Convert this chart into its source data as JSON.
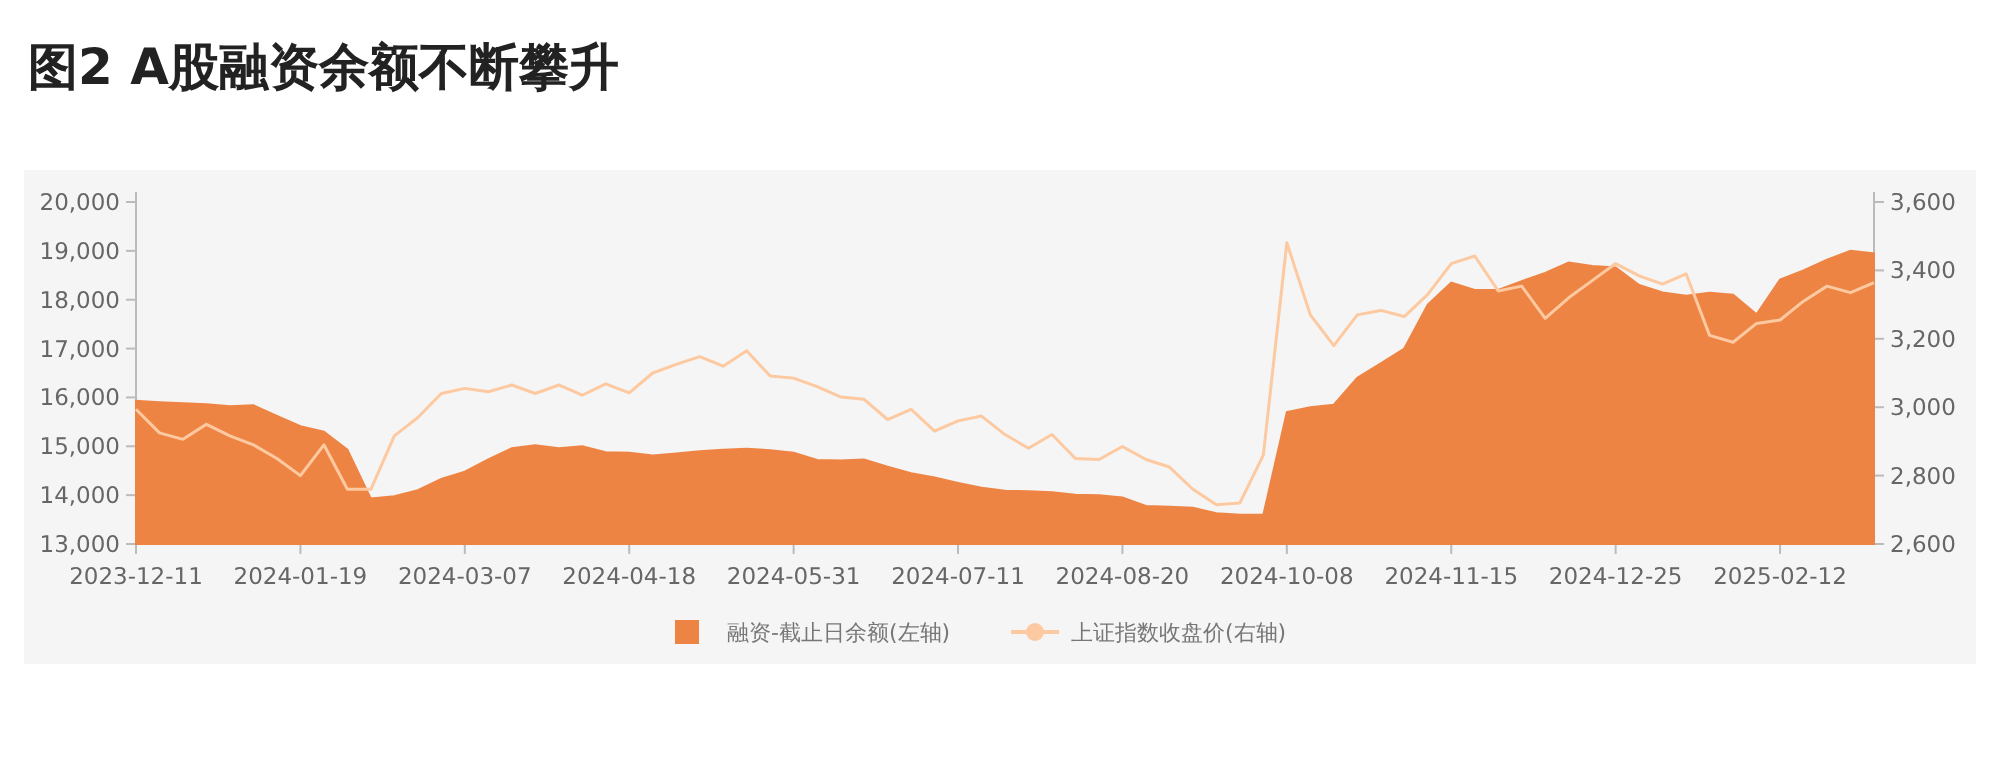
{
  "chart_data": {
    "type": "area",
    "title": "图2  A股融资余额不断攀升",
    "categories": [
      "2023-12-11",
      null,
      null,
      null,
      null,
      null,
      null,
      "2024-01-19",
      null,
      null,
      null,
      null,
      null,
      null,
      "2024-03-07",
      null,
      null,
      null,
      null,
      null,
      null,
      "2024-04-18",
      null,
      null,
      null,
      null,
      null,
      null,
      "2024-05-31",
      null,
      null,
      null,
      null,
      null,
      null,
      "2024-07-11",
      null,
      null,
      null,
      null,
      null,
      null,
      "2024-08-20",
      null,
      null,
      null,
      null,
      null,
      null,
      "2024-10-08",
      null,
      null,
      null,
      null,
      null,
      null,
      "2024-11-15",
      null,
      null,
      null,
      null,
      null,
      null,
      "2024-12-25",
      null,
      null,
      null,
      null,
      null,
      null,
      "2025-02-12",
      null,
      null,
      null,
      null
    ],
    "ylim": [
      13000,
      20000
    ],
    "yticks": [
      {
        "value": 13000,
        "label": "13,000"
      },
      {
        "value": 14000,
        "label": "14,000"
      },
      {
        "value": 15000,
        "label": "15,000"
      },
      {
        "value": 16000,
        "label": "16,000"
      },
      {
        "value": 17000,
        "label": "17,000"
      },
      {
        "value": 18000,
        "label": "18,000"
      },
      {
        "value": 19000,
        "label": "19,000"
      },
      {
        "value": 20000,
        "label": "20,000"
      }
    ],
    "y2lim": [
      2600,
      3600
    ],
    "y2ticks": [
      {
        "value": 2600,
        "label": "2,600"
      },
      {
        "value": 2800,
        "label": "2,800"
      },
      {
        "value": 3000,
        "label": "3,000"
      },
      {
        "value": 3200,
        "label": "3,200"
      },
      {
        "value": 3400,
        "label": "3,400"
      },
      {
        "value": 3600,
        "label": "3,600"
      }
    ],
    "legend": "bottom",
    "series": [
      {
        "name": "融资-截止日余额(左轴)",
        "color": "#ee8444",
        "values": [
          15930,
          15900,
          15880,
          15860,
          15820,
          15840,
          15620,
          15410,
          15300,
          14930,
          13930,
          13980,
          14100,
          14330,
          14480,
          14730,
          14960,
          15020,
          14960,
          15000,
          14880,
          14870,
          14810,
          14850,
          14900,
          14930,
          14950,
          14920,
          14870,
          14720,
          14710,
          14730,
          14580,
          14450,
          14360,
          14250,
          14150,
          14090,
          14080,
          14060,
          14010,
          14000,
          13950,
          13780,
          13760,
          13740,
          13630,
          13600,
          13600,
          15700,
          15800,
          15850,
          16400,
          16700,
          17000,
          17900,
          18350,
          18200,
          18200,
          18380,
          18550,
          18760,
          18690,
          18660,
          18300,
          18150,
          18080,
          18140,
          18100,
          17700,
          18410,
          18600,
          18820,
          19000,
          18950
        ]
      },
      {
        "name": "上证指数收盘价(右轴)",
        "type": "line",
        "axis": "y2",
        "color": "#fdc9a0",
        "values": [
          2994,
          2925,
          2906,
          2950,
          2916,
          2890,
          2850,
          2800,
          2890,
          2760,
          2760,
          2916,
          2970,
          3040,
          3055,
          3045,
          3065,
          3040,
          3065,
          3035,
          3068,
          3042,
          3100,
          3125,
          3148,
          3120,
          3165,
          3091,
          3085,
          3060,
          3030,
          3023,
          2964,
          2994,
          2930,
          2960,
          2974,
          2920,
          2880,
          2920,
          2850,
          2847,
          2885,
          2847,
          2825,
          2760,
          2715,
          2720,
          2860,
          3481,
          3270,
          3180,
          3270,
          3283,
          3265,
          3330,
          3420,
          3442,
          3340,
          3354,
          3260,
          3320,
          3370,
          3420,
          3384,
          3360,
          3390,
          3210,
          3190,
          3245,
          3255,
          3310,
          3354,
          3335,
          3364
        ]
      }
    ]
  }
}
